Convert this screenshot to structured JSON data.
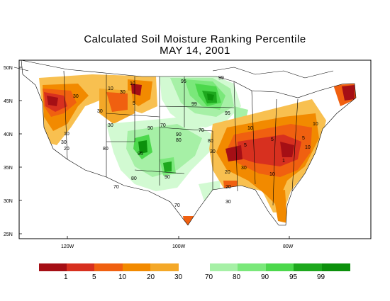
{
  "title_line1": "Calculated Soil Moisture Ranking Percentile",
  "title_line2": "MAY 14, 2001",
  "lat_ticks": [
    "50N",
    "45N",
    "40N",
    "35N",
    "30N",
    "25N"
  ],
  "lon_ticks": [
    "120W",
    "100W",
    "80W"
  ],
  "dry_legend": {
    "colors": [
      "#a50f15",
      "#d7301f",
      "#f06010",
      "#f28a00",
      "#f4a828",
      "#f8c050"
    ],
    "labels": [
      "1",
      "5",
      "10",
      "20",
      "30"
    ]
  },
  "wet_legend": {
    "colors": [
      "#d2fad2",
      "#a6f0a6",
      "#7ae87a",
      "#4cd84c",
      "#1ea81e",
      "#0c900c"
    ],
    "labels": [
      "70",
      "80",
      "90",
      "95",
      "99"
    ]
  },
  "contour_labels": [
    "1",
    "5",
    "10",
    "20",
    "30",
    "70",
    "80",
    "90",
    "95",
    "99"
  ]
}
